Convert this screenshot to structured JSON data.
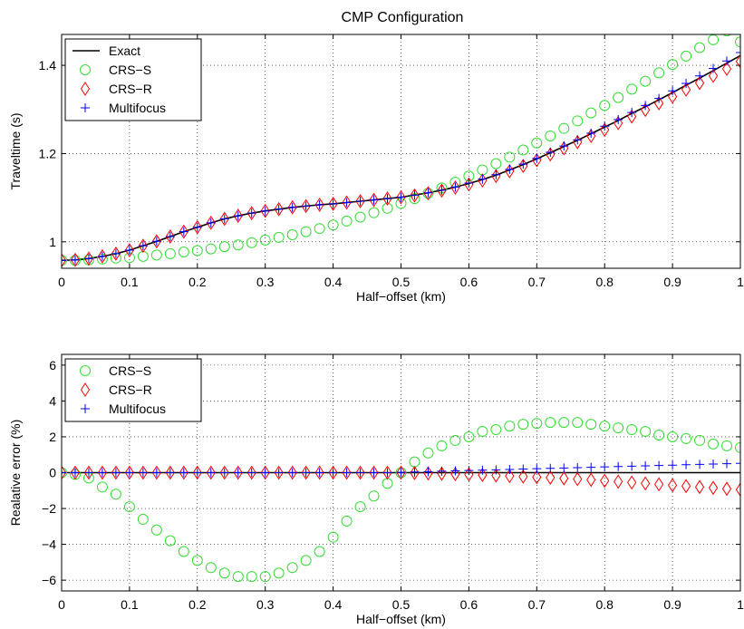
{
  "figure": {
    "title": "CMP Configuration"
  },
  "colors": {
    "exact": "#000000",
    "crs_s": "#33dd33",
    "crs_r": "#ff0000",
    "multifocus": "#0000ff"
  },
  "chart_data": [
    {
      "type": "line",
      "title": "CMP Configuration",
      "xlabel": "Half−offset (km)",
      "ylabel": "Traveltime (s)",
      "xlim": [
        0,
        1
      ],
      "ylim": [
        0.94,
        1.47
      ],
      "xticks": [
        "0",
        "0.1",
        "0.2",
        "0.3",
        "0.4",
        "0.5",
        "0.6",
        "0.7",
        "0.8",
        "0.9",
        "1"
      ],
      "xtick_values": [
        0,
        0.1,
        0.2,
        0.3,
        0.4,
        0.5,
        0.6,
        0.7,
        0.8,
        0.9,
        1
      ],
      "yticks": [
        "1",
        "1.2",
        "1.4"
      ],
      "ytick_values": [
        1.0,
        1.2,
        1.4
      ],
      "grid": true,
      "legend_position": "top-left",
      "x": [
        0,
        0.02,
        0.04,
        0.06,
        0.08,
        0.1,
        0.12,
        0.14,
        0.16,
        0.18,
        0.2,
        0.22,
        0.24,
        0.26,
        0.28,
        0.3,
        0.32,
        0.34,
        0.36,
        0.38,
        0.4,
        0.42,
        0.44,
        0.46,
        0.48,
        0.5,
        0.52,
        0.54,
        0.56,
        0.58,
        0.6,
        0.62,
        0.64,
        0.66,
        0.68,
        0.7,
        0.72,
        0.74,
        0.76,
        0.78,
        0.8,
        0.82,
        0.84,
        0.86,
        0.88,
        0.9,
        0.92,
        0.94,
        0.96,
        0.98,
        1.0
      ],
      "series": [
        {
          "name": "Exact",
          "marker": "line",
          "color": "#000000",
          "values": [
            0.958,
            0.959,
            0.962,
            0.967,
            0.973,
            0.981,
            0.991,
            1.001,
            1.012,
            1.023,
            1.033,
            1.043,
            1.052,
            1.059,
            1.065,
            1.07,
            1.074,
            1.078,
            1.081,
            1.084,
            1.086,
            1.089,
            1.092,
            1.095,
            1.098,
            1.101,
            1.106,
            1.111,
            1.117,
            1.124,
            1.132,
            1.141,
            1.151,
            1.163,
            1.175,
            1.188,
            1.202,
            1.216,
            1.23,
            1.245,
            1.26,
            1.275,
            1.291,
            1.306,
            1.322,
            1.338,
            1.355,
            1.371,
            1.388,
            1.405,
            1.422
          ]
        },
        {
          "name": "CRS−S",
          "marker": "circle",
          "color": "#33dd33",
          "values": [
            0.958,
            0.958,
            0.959,
            0.961,
            0.963,
            0.964,
            0.967,
            0.97,
            0.973,
            0.977,
            0.98,
            0.984,
            0.989,
            0.993,
            0.998,
            1.004,
            1.01,
            1.016,
            1.023,
            1.03,
            1.038,
            1.047,
            1.056,
            1.066,
            1.076,
            1.087,
            1.098,
            1.11,
            1.122,
            1.135,
            1.149,
            1.163,
            1.177,
            1.192,
            1.208,
            1.224,
            1.24,
            1.257,
            1.274,
            1.292,
            1.309,
            1.327,
            1.346,
            1.364,
            1.383,
            1.402,
            1.421,
            1.44,
            1.458,
            1.478,
            1.453
          ]
        },
        {
          "name": "CRS−R",
          "marker": "diamond",
          "color": "#ff0000",
          "values": [
            0.958,
            0.959,
            0.962,
            0.967,
            0.973,
            0.981,
            0.991,
            1.001,
            1.012,
            1.023,
            1.033,
            1.043,
            1.052,
            1.059,
            1.065,
            1.07,
            1.074,
            1.078,
            1.081,
            1.084,
            1.086,
            1.089,
            1.092,
            1.095,
            1.098,
            1.101,
            1.105,
            1.11,
            1.116,
            1.123,
            1.13,
            1.139,
            1.149,
            1.16,
            1.172,
            1.185,
            1.198,
            1.212,
            1.226,
            1.24,
            1.254,
            1.269,
            1.284,
            1.299,
            1.314,
            1.329,
            1.345,
            1.36,
            1.376,
            1.392,
            1.409
          ]
        },
        {
          "name": "Multifocus",
          "marker": "plus",
          "color": "#0000ff",
          "values": [
            0.958,
            0.959,
            0.962,
            0.967,
            0.973,
            0.981,
            0.991,
            1.001,
            1.012,
            1.023,
            1.033,
            1.043,
            1.052,
            1.059,
            1.065,
            1.07,
            1.074,
            1.078,
            1.081,
            1.084,
            1.086,
            1.089,
            1.092,
            1.095,
            1.098,
            1.101,
            1.106,
            1.111,
            1.117,
            1.124,
            1.133,
            1.142,
            1.152,
            1.164,
            1.176,
            1.189,
            1.203,
            1.217,
            1.231,
            1.246,
            1.262,
            1.277,
            1.293,
            1.309,
            1.325,
            1.342,
            1.359,
            1.376,
            1.393,
            1.41,
            1.429
          ]
        }
      ]
    },
    {
      "type": "line",
      "title": "",
      "xlabel": "Half−offset (km)",
      "ylabel": "Realative error (%)",
      "xlim": [
        0,
        1
      ],
      "ylim": [
        -6.6,
        6.6
      ],
      "xticks": [
        "0",
        "0.1",
        "0.2",
        "0.3",
        "0.4",
        "0.5",
        "0.6",
        "0.7",
        "0.8",
        "0.9",
        "1"
      ],
      "xtick_values": [
        0,
        0.1,
        0.2,
        0.3,
        0.4,
        0.5,
        0.6,
        0.7,
        0.8,
        0.9,
        1
      ],
      "yticks": [
        "−6",
        "−4",
        "−2",
        "0",
        "2",
        "4",
        "6"
      ],
      "ytick_values": [
        -6,
        -4,
        -2,
        0,
        2,
        4,
        6
      ],
      "grid": true,
      "legend_position": "top-left",
      "x": [
        0,
        0.02,
        0.04,
        0.06,
        0.08,
        0.1,
        0.12,
        0.14,
        0.16,
        0.18,
        0.2,
        0.22,
        0.24,
        0.26,
        0.28,
        0.3,
        0.32,
        0.34,
        0.36,
        0.38,
        0.4,
        0.42,
        0.44,
        0.46,
        0.48,
        0.5,
        0.52,
        0.54,
        0.56,
        0.58,
        0.6,
        0.62,
        0.64,
        0.66,
        0.68,
        0.7,
        0.72,
        0.74,
        0.76,
        0.78,
        0.8,
        0.82,
        0.84,
        0.86,
        0.88,
        0.9,
        0.92,
        0.94,
        0.96,
        0.98,
        1.0
      ],
      "series": [
        {
          "name": "",
          "marker": "line",
          "color": "#000000",
          "values": [
            0,
            0,
            0,
            0,
            0,
            0,
            0,
            0,
            0,
            0,
            0,
            0,
            0,
            0,
            0,
            0,
            0,
            0,
            0,
            0,
            0,
            0,
            0,
            0,
            0,
            0,
            0,
            0,
            0,
            0,
            0,
            0,
            0,
            0,
            0,
            0,
            0,
            0,
            0,
            0,
            0,
            0,
            0,
            0,
            0,
            0,
            0,
            0,
            0,
            0,
            0
          ]
        },
        {
          "name": "CRS−S",
          "marker": "circle",
          "color": "#33dd33",
          "values": [
            0,
            -0.1,
            -0.3,
            -0.8,
            -1.2,
            -1.9,
            -2.6,
            -3.2,
            -3.8,
            -4.4,
            -4.9,
            -5.3,
            -5.6,
            -5.8,
            -5.8,
            -5.8,
            -5.6,
            -5.3,
            -4.9,
            -4.4,
            -3.6,
            -2.7,
            -1.9,
            -1.3,
            -0.6,
            0.0,
            0.6,
            1.1,
            1.5,
            1.8,
            2.0,
            2.3,
            2.4,
            2.6,
            2.7,
            2.75,
            2.8,
            2.8,
            2.8,
            2.7,
            2.6,
            2.5,
            2.4,
            2.3,
            2.1,
            2.0,
            1.9,
            1.8,
            1.6,
            1.5,
            1.4
          ]
        },
        {
          "name": "CRS−R",
          "marker": "diamond",
          "color": "#ff0000",
          "values": [
            0,
            0,
            0,
            0,
            0,
            0,
            0,
            0,
            0,
            0,
            0,
            0,
            0,
            0,
            0,
            0,
            0,
            0,
            0,
            0,
            0,
            0,
            0,
            0,
            0,
            0,
            -0.02,
            -0.04,
            -0.06,
            -0.08,
            -0.1,
            -0.13,
            -0.16,
            -0.19,
            -0.22,
            -0.25,
            -0.28,
            -0.32,
            -0.36,
            -0.4,
            -0.45,
            -0.5,
            -0.55,
            -0.6,
            -0.65,
            -0.7,
            -0.75,
            -0.8,
            -0.85,
            -0.9,
            -0.95
          ]
        },
        {
          "name": "Multifocus",
          "marker": "plus",
          "color": "#0000ff",
          "values": [
            0,
            0,
            0,
            0,
            0,
            0,
            0,
            0,
            0,
            0,
            0,
            0,
            0,
            0,
            0,
            0,
            0,
            0,
            0,
            0,
            0,
            0,
            0,
            0,
            0,
            0.02,
            0.04,
            0.06,
            0.08,
            0.1,
            0.12,
            0.14,
            0.16,
            0.18,
            0.2,
            0.22,
            0.24,
            0.26,
            0.28,
            0.3,
            0.32,
            0.34,
            0.36,
            0.38,
            0.4,
            0.42,
            0.44,
            0.46,
            0.48,
            0.5,
            0.52
          ]
        }
      ]
    }
  ]
}
